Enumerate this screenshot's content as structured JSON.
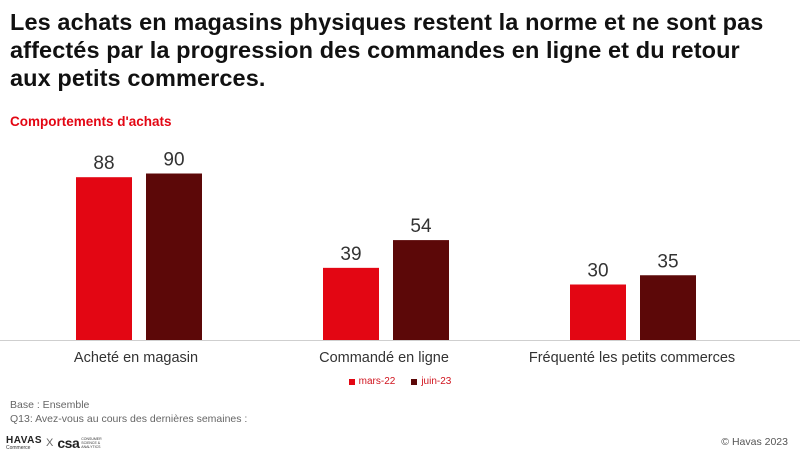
{
  "title": "Les achats en magasins physiques restent la norme et ne sont pas affectés par la progression des commandes en ligne et du retour aux petits commerces.",
  "subtitle": "Comportements d'achats",
  "chart_data": {
    "type": "bar",
    "categories": [
      "Acheté en magasin",
      "Commandé en ligne",
      "Fréquenté les petits commerces"
    ],
    "series": [
      {
        "name": "mars-22",
        "values": [
          88,
          39,
          30
        ],
        "color": "#e30613"
      },
      {
        "name": "juin-23",
        "values": [
          90,
          54,
          35
        ],
        "color": "#5c0808"
      }
    ],
    "ylim": [
      0,
      100
    ],
    "grid": false,
    "legend_position": "bottom-center",
    "xlabel": "",
    "ylabel": ""
  },
  "footer": {
    "base": "Base : Ensemble",
    "question": "Q13: Avez-vous au cours des dernières semaines :",
    "copyright": "© Havas 2023",
    "logo_havas": "HAVAS",
    "logo_havas_sub": "Commerce",
    "logo_separator": "X",
    "logo_csa": "csa",
    "logo_csa_sub": "CONSUMER SCIENCE & ANALYTICS"
  }
}
